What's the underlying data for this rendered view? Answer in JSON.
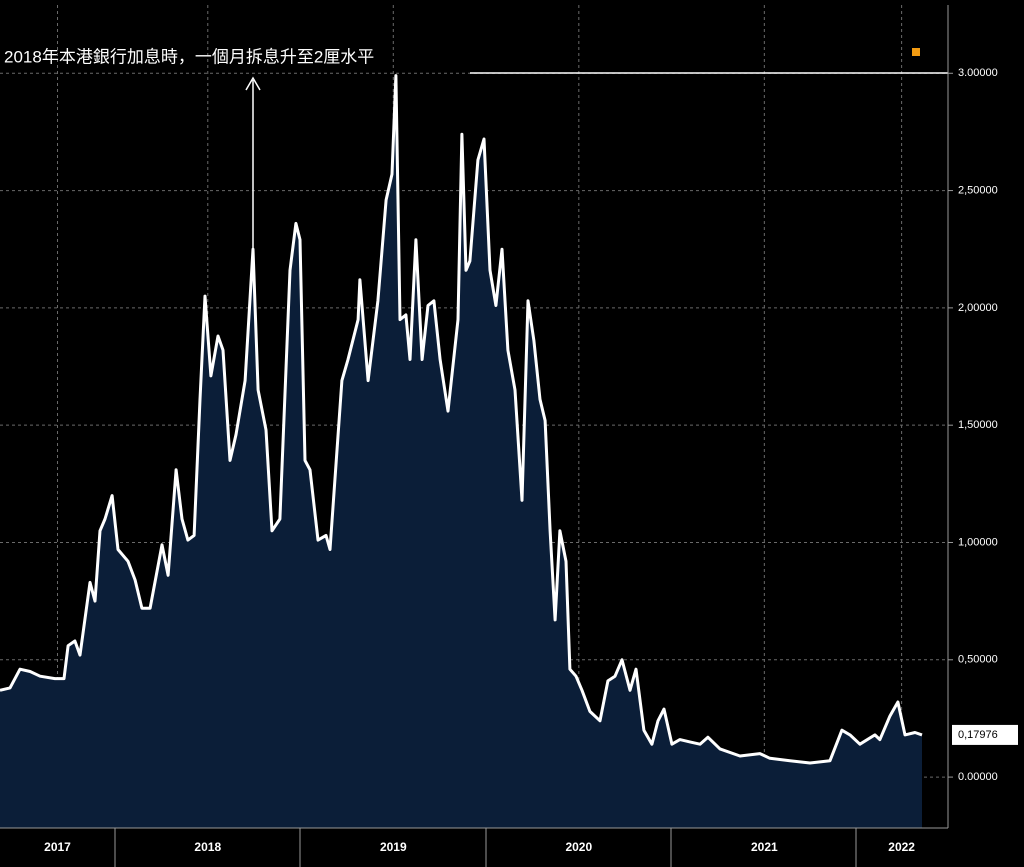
{
  "chart_data": {
    "type": "area",
    "annotation": "2018年本港銀行加息時，一個月拆息升至2厘水平",
    "color": "#ffffff",
    "area_color": "#0b1e38",
    "x": [
      2017.38,
      2017.434,
      2017.488,
      2017.542,
      2017.596,
      2017.676,
      2017.725,
      2017.747,
      2017.784,
      2017.811,
      2017.865,
      2017.892,
      2017.919,
      2017.946,
      2017.984,
      2018.016,
      2018.07,
      2018.108,
      2018.145,
      2018.189,
      2018.253,
      2018.286,
      2018.329,
      2018.361,
      2018.393,
      2018.426,
      2018.458,
      2018.485,
      2018.517,
      2018.555,
      2018.582,
      2018.62,
      2018.652,
      2018.701,
      2018.744,
      2018.771,
      2018.814,
      2018.846,
      2018.889,
      2018.943,
      2018.975,
      2018.997,
      2019.024,
      2019.051,
      2019.094,
      2019.137,
      2019.159,
      2019.223,
      2019.256,
      2019.31,
      2019.32,
      2019.364,
      2019.417,
      2019.461,
      2019.493,
      2019.514,
      2019.536,
      2019.568,
      2019.59,
      2019.622,
      2019.655,
      2019.687,
      2019.719,
      2019.752,
      2019.795,
      2019.849,
      2019.87,
      2019.892,
      2019.913,
      2019.956,
      2019.989,
      2020.021,
      2020.053,
      2020.086,
      2020.118,
      2020.156,
      2020.194,
      2020.226,
      2020.258,
      2020.291,
      2020.318,
      2020.345,
      2020.372,
      2020.398,
      2020.431,
      2020.452,
      2020.485,
      2020.517,
      2020.56,
      2020.614,
      2020.657,
      2020.695,
      2020.733,
      2020.776,
      2020.808,
      2020.851,
      2020.894,
      2020.927,
      2020.959,
      2021.002,
      2021.045,
      2021.099,
      2021.153,
      2021.196,
      2021.261,
      2021.369,
      2021.476,
      2021.53,
      2021.638,
      2021.746,
      2021.854,
      2021.918,
      2021.962,
      2022.015,
      2022.096,
      2022.123,
      2022.177,
      2022.22,
      2022.258,
      2022.312,
      2022.35
    ],
    "values": [
      0.37,
      0.38,
      0.46,
      0.45,
      0.43,
      0.42,
      0.42,
      0.56,
      0.58,
      0.52,
      0.83,
      0.75,
      1.05,
      1.1,
      1.2,
      0.97,
      0.92,
      0.84,
      0.72,
      0.72,
      0.99,
      0.86,
      1.31,
      1.1,
      1.01,
      1.03,
      1.61,
      2.05,
      1.71,
      1.88,
      1.82,
      1.35,
      1.46,
      1.69,
      2.25,
      1.65,
      1.48,
      1.05,
      1.1,
      2.16,
      2.36,
      2.29,
      1.35,
      1.31,
      1.01,
      1.03,
      0.97,
      1.69,
      1.78,
      1.95,
      2.12,
      1.69,
      2.03,
      2.46,
      2.57,
      2.99,
      1.95,
      1.97,
      1.78,
      2.29,
      1.78,
      2.01,
      2.03,
      1.78,
      1.56,
      1.95,
      2.74,
      2.16,
      2.2,
      2.63,
      2.72,
      2.16,
      2.01,
      2.25,
      1.82,
      1.65,
      1.18,
      2.03,
      1.86,
      1.61,
      1.52,
      1.05,
      0.67,
      1.05,
      0.92,
      0.46,
      0.43,
      0.37,
      0.28,
      0.24,
      0.41,
      0.43,
      0.5,
      0.37,
      0.46,
      0.2,
      0.14,
      0.24,
      0.29,
      0.14,
      0.16,
      0.15,
      0.14,
      0.17,
      0.12,
      0.09,
      0.1,
      0.08,
      0.07,
      0.06,
      0.07,
      0.2,
      0.18,
      0.14,
      0.18,
      0.16,
      0.26,
      0.32,
      0.18,
      0.19,
      0.17976
    ],
    "last_value_label": "0,17976",
    "xlim": [
      2017.38,
      2022.49
    ],
    "xticks": [
      {
        "value": 2017.69,
        "label": "2017"
      },
      {
        "value": 2018.5,
        "label": "2018"
      },
      {
        "value": 2019.5,
        "label": "2019"
      },
      {
        "value": 2020.5,
        "label": "2020"
      },
      {
        "value": 2021.5,
        "label": "2021"
      },
      {
        "value": 2022.24,
        "label": "2022"
      }
    ],
    "ylim": [
      -0.217,
      3.291
    ],
    "yticks": [
      {
        "value": 0,
        "label": "0.00000"
      },
      {
        "value": 0.5,
        "label": "0,50000"
      },
      {
        "value": 1,
        "label": "1,00000"
      },
      {
        "value": 1.5,
        "label": "1,50000"
      },
      {
        "value": 2,
        "label": "2,00000"
      },
      {
        "value": 2.5,
        "label": "2,50000"
      },
      {
        "value": 3,
        "label": "3.00000"
      }
    ],
    "grid": true
  }
}
